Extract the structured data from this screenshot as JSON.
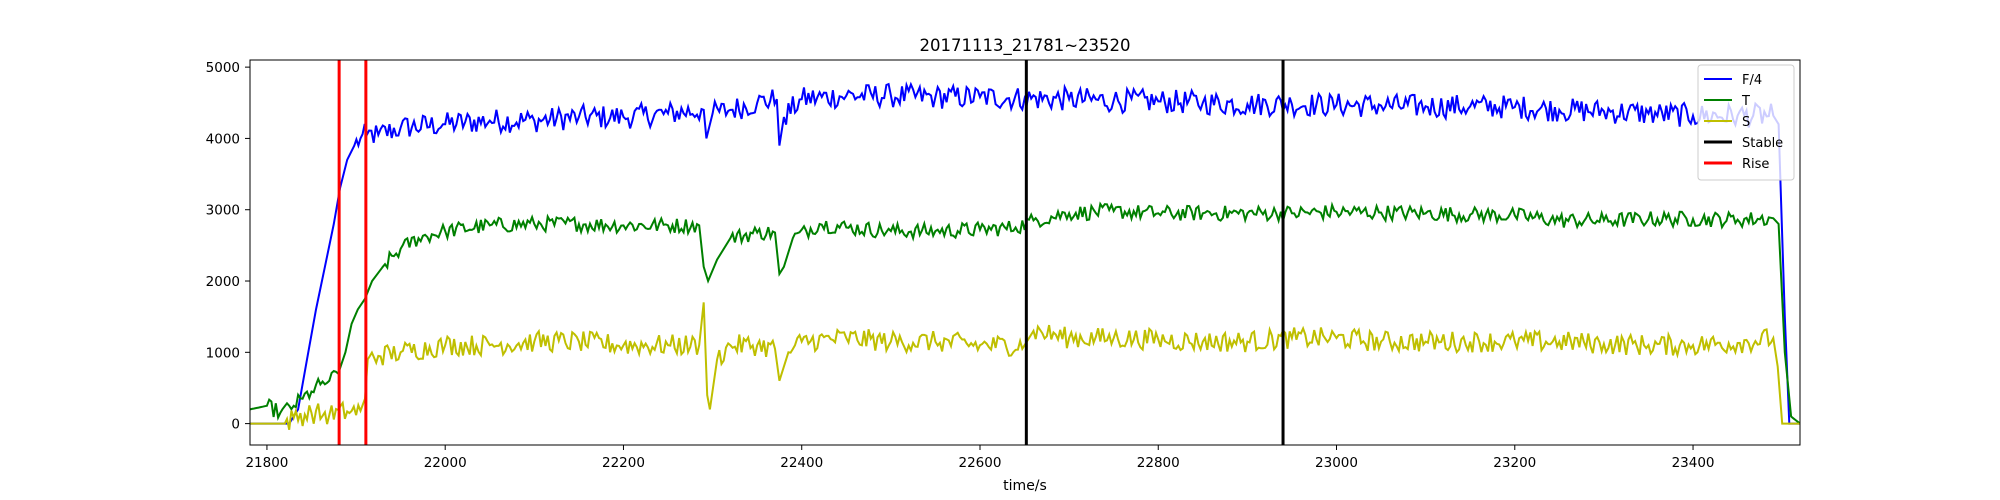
{
  "chart_data": {
    "type": "line",
    "title": "20171113_21781~23520",
    "xlabel": "time/s",
    "ylabel": "",
    "xlim": [
      21781,
      23520
    ],
    "ylim": [
      -300,
      5100
    ],
    "xticks": [
      21800,
      22000,
      22200,
      22400,
      22600,
      22800,
      23000,
      23200,
      23400
    ],
    "yticks": [
      0,
      1000,
      2000,
      3000,
      4000,
      5000
    ],
    "grid": false,
    "legend_position": "top-right",
    "series": [
      {
        "name": "F/4",
        "color": "#0000ff",
        "points": [
          [
            21781,
            0
          ],
          [
            21825,
            0
          ],
          [
            21835,
            200
          ],
          [
            21845,
            900
          ],
          [
            21855,
            1600
          ],
          [
            21865,
            2200
          ],
          [
            21875,
            2800
          ],
          [
            21882,
            3300
          ],
          [
            21890,
            3700
          ],
          [
            21898,
            3900
          ],
          [
            21905,
            4000
          ],
          [
            21912,
            4050
          ],
          [
            21925,
            4050
          ],
          [
            21950,
            4150
          ],
          [
            22000,
            4200
          ],
          [
            22050,
            4250
          ],
          [
            22100,
            4250
          ],
          [
            22150,
            4300
          ],
          [
            22200,
            4300
          ],
          [
            22250,
            4350
          ],
          [
            22290,
            4400
          ],
          [
            22293,
            4000
          ],
          [
            22300,
            4350
          ],
          [
            22320,
            4400
          ],
          [
            22350,
            4500
          ],
          [
            22372,
            4550
          ],
          [
            22375,
            3900
          ],
          [
            22380,
            4300
          ],
          [
            22400,
            4550
          ],
          [
            22450,
            4600
          ],
          [
            22500,
            4600
          ],
          [
            22550,
            4580
          ],
          [
            22600,
            4580
          ],
          [
            22650,
            4560
          ],
          [
            22700,
            4550
          ],
          [
            22750,
            4530
          ],
          [
            22800,
            4520
          ],
          [
            22850,
            4500
          ],
          [
            22900,
            4480
          ],
          [
            22950,
            4480
          ],
          [
            23000,
            4470
          ],
          [
            23050,
            4460
          ],
          [
            23100,
            4450
          ],
          [
            23150,
            4450
          ],
          [
            23200,
            4440
          ],
          [
            23250,
            4400
          ],
          [
            23300,
            4380
          ],
          [
            23350,
            4350
          ],
          [
            23400,
            4320
          ],
          [
            23450,
            4320
          ],
          [
            23490,
            4320
          ],
          [
            23496,
            4200
          ],
          [
            23503,
            1500
          ],
          [
            23508,
            0
          ],
          [
            23520,
            0
          ]
        ]
      },
      {
        "name": "T",
        "color": "#008000",
        "points": [
          [
            21781,
            200
          ],
          [
            21800,
            250
          ],
          [
            21815,
            150
          ],
          [
            21830,
            250
          ],
          [
            21840,
            350
          ],
          [
            21850,
            450
          ],
          [
            21860,
            550
          ],
          [
            21870,
            600
          ],
          [
            21880,
            700
          ],
          [
            21888,
            1000
          ],
          [
            21895,
            1400
          ],
          [
            21902,
            1600
          ],
          [
            21910,
            1750
          ],
          [
            21918,
            2000
          ],
          [
            21930,
            2200
          ],
          [
            21950,
            2450
          ],
          [
            21970,
            2600
          ],
          [
            22000,
            2700
          ],
          [
            22050,
            2780
          ],
          [
            22100,
            2800
          ],
          [
            22150,
            2800
          ],
          [
            22200,
            2780
          ],
          [
            22250,
            2780
          ],
          [
            22285,
            2780
          ],
          [
            22290,
            2200
          ],
          [
            22295,
            2000
          ],
          [
            22305,
            2300
          ],
          [
            22320,
            2600
          ],
          [
            22350,
            2680
          ],
          [
            22370,
            2680
          ],
          [
            22375,
            2100
          ],
          [
            22380,
            2200
          ],
          [
            22390,
            2600
          ],
          [
            22420,
            2800
          ],
          [
            22450,
            2750
          ],
          [
            22500,
            2700
          ],
          [
            22550,
            2700
          ],
          [
            22600,
            2720
          ],
          [
            22640,
            2750
          ],
          [
            22660,
            2850
          ],
          [
            22700,
            2950
          ],
          [
            22750,
            2980
          ],
          [
            22800,
            2950
          ],
          [
            22850,
            2950
          ],
          [
            22900,
            2950
          ],
          [
            22950,
            2950
          ],
          [
            23000,
            2970
          ],
          [
            23050,
            2960
          ],
          [
            23100,
            2950
          ],
          [
            23150,
            2930
          ],
          [
            23200,
            2920
          ],
          [
            23250,
            2850
          ],
          [
            23300,
            2850
          ],
          [
            23350,
            2870
          ],
          [
            23400,
            2870
          ],
          [
            23450,
            2860
          ],
          [
            23490,
            2880
          ],
          [
            23496,
            2800
          ],
          [
            23503,
            1000
          ],
          [
            23510,
            100
          ],
          [
            23520,
            0
          ]
        ]
      },
      {
        "name": "S",
        "color": "#bfbf00",
        "points": [
          [
            21781,
            0
          ],
          [
            21820,
            0
          ],
          [
            21830,
            80
          ],
          [
            21850,
            150
          ],
          [
            21870,
            120
          ],
          [
            21890,
            170
          ],
          [
            21905,
            180
          ],
          [
            21910,
            350
          ],
          [
            21913,
            900
          ],
          [
            21925,
            950
          ],
          [
            21950,
            1000
          ],
          [
            22000,
            1100
          ],
          [
            22050,
            1100
          ],
          [
            22100,
            1150
          ],
          [
            22150,
            1150
          ],
          [
            22200,
            1100
          ],
          [
            22250,
            1100
          ],
          [
            22285,
            1100
          ],
          [
            22290,
            1700
          ],
          [
            22294,
            400
          ],
          [
            22297,
            200
          ],
          [
            22305,
            900
          ],
          [
            22320,
            1100
          ],
          [
            22350,
            1100
          ],
          [
            22370,
            1050
          ],
          [
            22375,
            600
          ],
          [
            22385,
            1000
          ],
          [
            22400,
            1150
          ],
          [
            22450,
            1200
          ],
          [
            22500,
            1150
          ],
          [
            22550,
            1150
          ],
          [
            22600,
            1100
          ],
          [
            22650,
            1100
          ],
          [
            22660,
            1300
          ],
          [
            22700,
            1200
          ],
          [
            22750,
            1200
          ],
          [
            22800,
            1180
          ],
          [
            22850,
            1150
          ],
          [
            22900,
            1150
          ],
          [
            22950,
            1200
          ],
          [
            23000,
            1200
          ],
          [
            23050,
            1150
          ],
          [
            23100,
            1150
          ],
          [
            23150,
            1150
          ],
          [
            23200,
            1150
          ],
          [
            23250,
            1150
          ],
          [
            23300,
            1120
          ],
          [
            23350,
            1100
          ],
          [
            23400,
            1100
          ],
          [
            23450,
            1130
          ],
          [
            23490,
            1200
          ],
          [
            23495,
            800
          ],
          [
            23500,
            0
          ],
          [
            23520,
            0
          ]
        ]
      },
      {
        "name": "Stable",
        "color": "#000000",
        "vlines": [
          22652,
          22940
        ]
      },
      {
        "name": "Rise",
        "color": "#ff0000",
        "vlines": [
          21881,
          21911
        ]
      }
    ]
  }
}
